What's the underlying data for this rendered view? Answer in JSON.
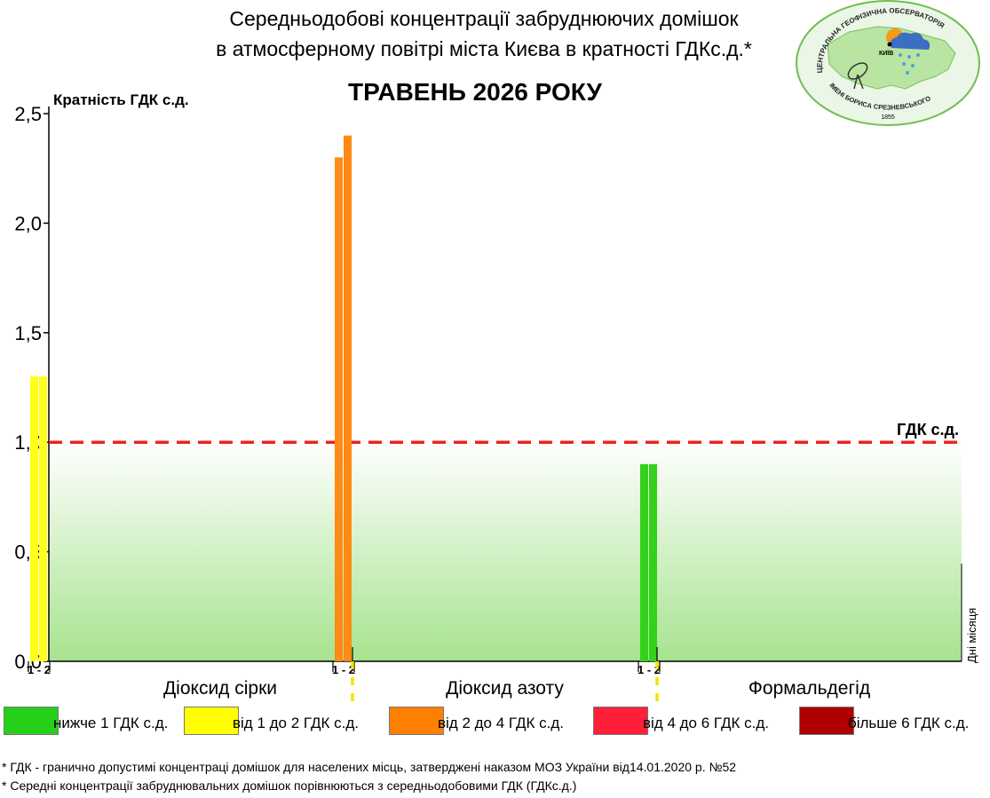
{
  "header": {
    "title_line1": "Середньодобові концентрації забруднюючих домішок",
    "title_line2": "в атмосферному повітрі міста Києва в кратності ГДКс.д.*",
    "month": "ТРАВЕНЬ 2026 РОКУ"
  },
  "logo": {
    "text_top": "ЦЕНТРАЛЬНА ГЕОФІЗИЧНА ОБСЕРВАТОРІЯ",
    "text_bottom": "ІМЕНІ БОРИСА СРЕЗНЕВСЬКОГО",
    "year": "1855",
    "city": "КИЇВ"
  },
  "chart_data": {
    "type": "bar",
    "ylabel": "Кратність ГДК с.д.",
    "xlabel": "Дні місяця",
    "ylim": [
      0,
      2.5
    ],
    "yticks": [
      "0,0",
      "0,5",
      "1,0",
      "1,5",
      "2,0",
      "2,5"
    ],
    "ytick_values": [
      0,
      0.5,
      1.0,
      1.5,
      2.0,
      2.5
    ],
    "threshold": {
      "value": 1.0,
      "label": "ГДК с.д.",
      "color": "#e8261c"
    },
    "groups": [
      {
        "name": "Діоксид сірки",
        "days_label": "1 - 2",
        "values": [
          1.3,
          1.3
        ],
        "color": "#ffff1a"
      },
      {
        "name": "Діоксид азоту",
        "days_label": "1 - 2",
        "values": [
          2.3,
          2.4
        ],
        "color": "#ff8a14"
      },
      {
        "name": "Формальдегід",
        "days_label": "1 - 2",
        "values": [
          0.9,
          0.9
        ],
        "color": "#33d11a"
      }
    ]
  },
  "legend": [
    {
      "label": "нижче 1 ГДК с.д.",
      "color": "#26d01a"
    },
    {
      "label": "від 1 до 2 ГДК с.д.",
      "color": "#ffff00"
    },
    {
      "label": "від 2 до 4 ГДК с.д.",
      "color": "#ff8000"
    },
    {
      "label": "від 4 до 6 ГДК с.д.",
      "color": "#ff1f3a"
    },
    {
      "label": "більше 6 ГДК с.д.",
      "color": "#b00000"
    }
  ],
  "footnotes": [
    "* ГДК - гранично допустимі концентраці домішок для населених місць, затверджені наказом МОЗ України від14.01.2020 р. №52",
    "* Середні концентрації забруднювальних домішок порівнюються з середньодобовими  ГДК (ГДКс.д.)"
  ]
}
